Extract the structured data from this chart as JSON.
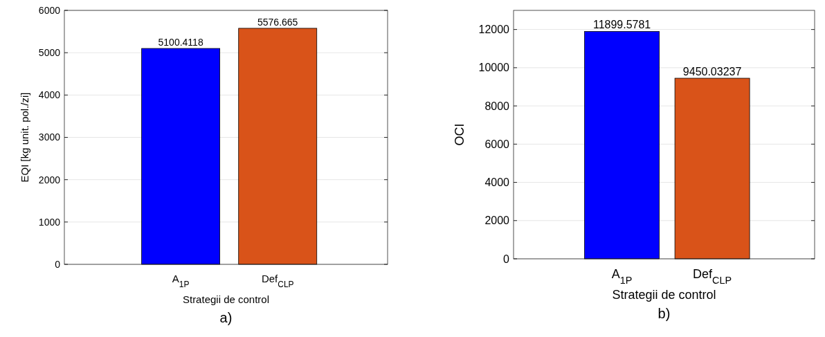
{
  "chart_data": [
    {
      "type": "bar",
      "categories": [
        "A$_{1P}$",
        "Def$_{CLP}$"
      ],
      "values": [
        5100.4118,
        5576.665
      ],
      "colors": [
        "#0000ff",
        "#d95319"
      ],
      "ylim": [
        0,
        6000
      ],
      "yticks": [
        0,
        1000,
        2000,
        3000,
        4000,
        5000,
        6000
      ],
      "ylabel": "EQI [kg unit. pol./zi]",
      "xlabel": "Strategii de control",
      "grid": "y",
      "data_labels": true,
      "annotations": [
        "a)"
      ]
    },
    {
      "type": "bar",
      "categories": [
        "A$_{1P}$",
        "Def$_{CLP}$"
      ],
      "values": [
        11899.5781,
        9450.03237
      ],
      "colors": [
        "#0000ff",
        "#d95319"
      ],
      "ylim": [
        0,
        13000
      ],
      "yticks": [
        0,
        2000,
        4000,
        6000,
        8000,
        10000,
        12000
      ],
      "ylabel": "OCI",
      "xlabel": "Strategii de control",
      "grid": "y",
      "data_labels": true,
      "annotations": [
        "b)"
      ]
    }
  ]
}
